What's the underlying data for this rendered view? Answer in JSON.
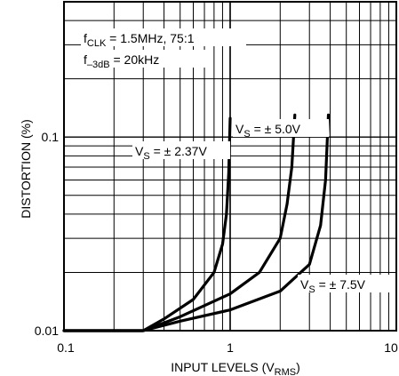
{
  "chart_data": {
    "type": "line",
    "xscale": "log",
    "yscale": "log",
    "xlim": [
      0.1,
      10
    ],
    "ylim": [
      0.01,
      0.5
    ],
    "grid": true,
    "xlabel": "INPUT LEVELS (VRMS)",
    "xlabel_main": "INPUT LEVELS (V",
    "xlabel_sub": "RMS",
    "xlabel_close": ")",
    "ylabel": "DISTORTION (%)",
    "x_ticks": [
      "0.1",
      "1",
      "10"
    ],
    "y_ticks": [
      "0.01",
      "0.1"
    ],
    "annotations": {
      "condition1": {
        "pre": "f",
        "sub": "CLK",
        "post": " = 1.5MHz, 75:1"
      },
      "condition2": {
        "pre": "f",
        "sub": "–3dB",
        "post": " = 20kHz"
      }
    },
    "series": [
      {
        "name": "VS = ±2.37V",
        "label": {
          "pre": "V",
          "sub": "S",
          "post": " = ± 2.37V"
        },
        "points": [
          [
            0.1,
            0.01
          ],
          [
            0.3,
            0.01
          ],
          [
            0.4,
            0.0115
          ],
          [
            0.6,
            0.0145
          ],
          [
            0.8,
            0.02
          ],
          [
            0.9,
            0.028
          ],
          [
            0.95,
            0.04
          ],
          [
            0.98,
            0.065
          ],
          [
            1.0,
            0.125
          ]
        ]
      },
      {
        "name": "VS = ±5.0V",
        "label": {
          "pre": "V",
          "sub": "S",
          "post": " = ± 5.0V"
        },
        "points": [
          [
            0.1,
            0.01
          ],
          [
            0.3,
            0.01
          ],
          [
            0.5,
            0.0118
          ],
          [
            1.0,
            0.0155
          ],
          [
            1.5,
            0.02
          ],
          [
            2.0,
            0.03
          ],
          [
            2.2,
            0.045
          ],
          [
            2.35,
            0.07
          ],
          [
            2.45,
            0.13
          ]
        ]
      },
      {
        "name": "VS = ±7.5V",
        "label": {
          "pre": "V",
          "sub": "S",
          "post": " = ± 7.5V"
        },
        "points": [
          [
            0.1,
            0.01
          ],
          [
            0.3,
            0.01
          ],
          [
            0.5,
            0.0112
          ],
          [
            1.0,
            0.0128
          ],
          [
            2.0,
            0.016
          ],
          [
            3.0,
            0.022
          ],
          [
            3.5,
            0.035
          ],
          [
            3.75,
            0.06
          ],
          [
            3.9,
            0.13
          ]
        ]
      }
    ]
  }
}
